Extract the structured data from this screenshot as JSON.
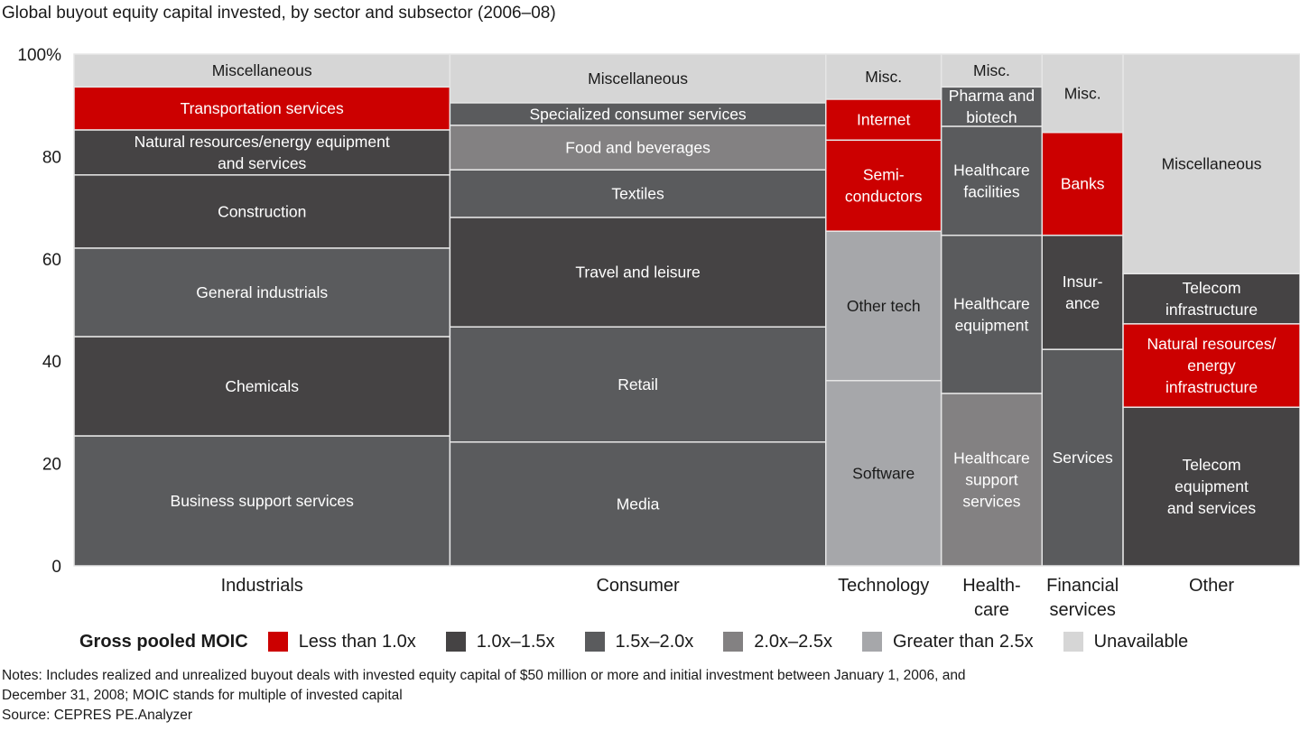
{
  "chart_data": {
    "type": "marimekko",
    "title": "Global buyout equity capital invested, by sector and subsector (2006–08)",
    "ylabel": "",
    "ylim": [
      0,
      100
    ],
    "yticks": [
      "0",
      "20",
      "40",
      "60",
      "80",
      "100%"
    ],
    "ytick_values": [
      0,
      20,
      40,
      60,
      80,
      100
    ],
    "legend": {
      "title": "Gross pooled MOIC",
      "placement": "bottom",
      "items": [
        {
          "key": "lt1",
          "label": "Less than 1.0x",
          "color": "#cc0000"
        },
        {
          "key": "1to15",
          "label": "1.0x–1.5x",
          "color": "#454344"
        },
        {
          "key": "15to2",
          "label": "1.5x–2.0x",
          "color": "#5a5b5d"
        },
        {
          "key": "2to25",
          "label": "2.0x–2.5x",
          "color": "#838182"
        },
        {
          "key": "gt25",
          "label": "Greater than 2.5x",
          "color": "#a6a7aa"
        },
        {
          "key": "na",
          "label": "Unavailable",
          "color": "#d6d6d6"
        }
      ]
    },
    "sectors": [
      {
        "name": "Industrials",
        "label_lines": [
          "Industrials"
        ],
        "width_share": 30.6,
        "segments": [
          {
            "label": "Business support services",
            "lines": [
              "Business support services"
            ],
            "value": 25.4,
            "moic": "15to2"
          },
          {
            "label": "Chemicals",
            "lines": [
              "Chemicals"
            ],
            "value": 19.4,
            "moic": "1to15"
          },
          {
            "label": "General industrials",
            "lines": [
              "General industrials"
            ],
            "value": 17.3,
            "moic": "15to2"
          },
          {
            "label": "Construction",
            "lines": [
              "Construction"
            ],
            "value": 14.3,
            "moic": "1to15"
          },
          {
            "label": "Natural resources/energy equipment and services",
            "lines": [
              "Natural resources/energy equipment",
              "and services"
            ],
            "value": 8.8,
            "moic": "1to15"
          },
          {
            "label": "Transportation services",
            "lines": [
              "Transportation services"
            ],
            "value": 8.4,
            "moic": "lt1"
          },
          {
            "label": "Miscellaneous",
            "lines": [
              "Miscellaneous"
            ],
            "value": 6.4,
            "moic": "na"
          }
        ]
      },
      {
        "name": "Consumer",
        "label_lines": [
          "Consumer"
        ],
        "width_share": 30.6,
        "segments": [
          {
            "label": "Media",
            "lines": [
              "Media"
            ],
            "value": 24.2,
            "moic": "15to2"
          },
          {
            "label": "Retail",
            "lines": [
              "Retail"
            ],
            "value": 22.5,
            "moic": "15to2"
          },
          {
            "label": "Travel and leisure",
            "lines": [
              "Travel and leisure"
            ],
            "value": 21.4,
            "moic": "1to15"
          },
          {
            "label": "Textiles",
            "lines": [
              "Textiles"
            ],
            "value": 9.3,
            "moic": "15to2"
          },
          {
            "label": "Food and beverages",
            "lines": [
              "Food and beverages"
            ],
            "value": 8.7,
            "moic": "2to25"
          },
          {
            "label": "Specialized consumer services",
            "lines": [
              "Specialized consumer services"
            ],
            "value": 4.4,
            "moic": "15to2"
          },
          {
            "label": "Miscellaneous",
            "lines": [
              "Miscellaneous"
            ],
            "value": 9.5,
            "moic": "na"
          }
        ]
      },
      {
        "name": "Technology",
        "label_lines": [
          "Technology"
        ],
        "width_share": 9.4,
        "segments": [
          {
            "label": "Software",
            "lines": [
              "Software"
            ],
            "value": 36.2,
            "moic": "gt25"
          },
          {
            "label": "Other tech",
            "lines": [
              "Other tech"
            ],
            "value": 29.2,
            "moic": "gt25"
          },
          {
            "label": "Semiconductors",
            "lines": [
              "Semi-",
              "conductors"
            ],
            "value": 17.8,
            "moic": "lt1"
          },
          {
            "label": "Internet",
            "lines": [
              "Internet"
            ],
            "value": 8.0,
            "moic": "lt1"
          },
          {
            "label": "Misc.",
            "lines": [
              "Misc."
            ],
            "value": 8.8,
            "moic": "na"
          }
        ]
      },
      {
        "name": "Healthcare",
        "label_lines": [
          "Health-",
          "care"
        ],
        "width_share": 8.2,
        "segments": [
          {
            "label": "Healthcare support services",
            "lines": [
              "Healthcare",
              "support",
              "services"
            ],
            "value": 33.7,
            "moic": "2to25"
          },
          {
            "label": "Healthcare equipment",
            "lines": [
              "Healthcare",
              "equipment"
            ],
            "value": 30.9,
            "moic": "15to2"
          },
          {
            "label": "Healthcare facilities",
            "lines": [
              "Healthcare",
              "facilities"
            ],
            "value": 21.3,
            "moic": "15to2"
          },
          {
            "label": "Pharma and biotech",
            "lines": [
              "Pharma and",
              "biotech"
            ],
            "value": 7.7,
            "moic": "15to2"
          },
          {
            "label": "Misc.",
            "lines": [
              "Misc."
            ],
            "value": 6.4,
            "moic": "na"
          }
        ]
      },
      {
        "name": "Financial services",
        "label_lines": [
          "Financial",
          "services"
        ],
        "width_share": 6.6,
        "segments": [
          {
            "label": "Services",
            "lines": [
              "Services"
            ],
            "value": 42.3,
            "moic": "15to2"
          },
          {
            "label": "Insurance",
            "lines": [
              "Insur-",
              "ance"
            ],
            "value": 22.3,
            "moic": "1to15"
          },
          {
            "label": "Banks",
            "lines": [
              "Banks"
            ],
            "value": 20.1,
            "moic": "lt1"
          },
          {
            "label": "Misc.",
            "lines": [
              "Misc."
            ],
            "value": 15.3,
            "moic": "na"
          }
        ]
      },
      {
        "name": "Other",
        "label_lines": [
          "Other"
        ],
        "width_share": 14.4,
        "segments": [
          {
            "label": "Telecom equipment and services",
            "lines": [
              "Telecom",
              "equipment",
              "and services"
            ],
            "value": 31.0,
            "moic": "1to15"
          },
          {
            "label": "Natural resources/energy infrastructure",
            "lines": [
              "Natural resources/",
              "energy",
              "infrastructure"
            ],
            "value": 16.3,
            "moic": "lt1"
          },
          {
            "label": "Telecom infrastructure",
            "lines": [
              "Telecom",
              "infrastructure"
            ],
            "value": 9.8,
            "moic": "1to15"
          },
          {
            "label": "Miscellaneous",
            "lines": [
              "Miscellaneous"
            ],
            "value": 42.9,
            "moic": "na"
          }
        ]
      }
    ]
  },
  "notes": {
    "line1": "Notes: Includes realized and unrealized buyout deals with invested equity capital of $50 million or more and initial investment between January 1, 2006, and",
    "line2": "December 31, 2008; MOIC stands for multiple of invested capital",
    "source": "Source: CEPRES PE.Analyzer"
  }
}
